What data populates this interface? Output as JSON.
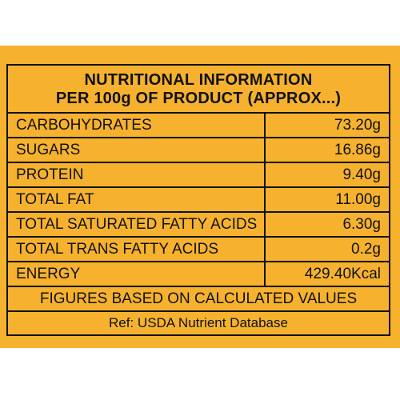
{
  "title_line1": "NUTRITIONAL INFORMATION",
  "title_line2": "PER 100g OF PRODUCT (APPROX...)",
  "rows": [
    {
      "name": "CARBOHYDRATES",
      "value": "73.20g"
    },
    {
      "name": "SUGARS",
      "value": "16.86g"
    },
    {
      "name": "PROTEIN",
      "value": "9.40g"
    },
    {
      "name": "TOTAL FAT",
      "value": "11.00g"
    },
    {
      "name": "TOTAL SATURATED FATTY ACIDS",
      "value": "6.30g"
    },
    {
      "name": "TOTAL TRANS FATTY ACIDS",
      "value": "0.2g"
    },
    {
      "name": "ENERGY",
      "value": "429.40Kcal"
    }
  ],
  "footer_note": "FIGURES BASED ON CALCULATED VALUES",
  "reference": "Ref: USDA Nutrient Database",
  "colors": {
    "background": "#f6b22e",
    "border": "#111111"
  }
}
